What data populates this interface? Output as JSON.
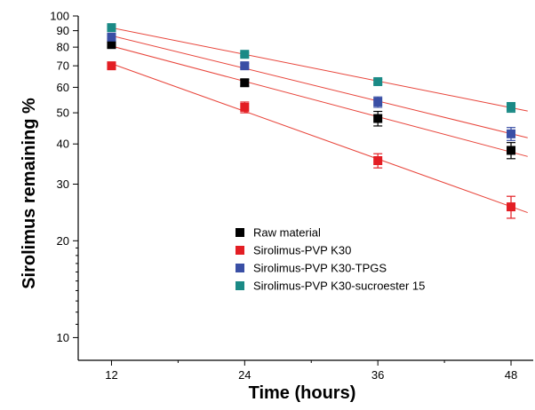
{
  "chart_data": {
    "type": "scatter",
    "xlabel": "Time (hours)",
    "ylabel": "Sirolimus remaining %",
    "x_ticks": [
      12,
      24,
      36,
      48
    ],
    "y_ticks": [
      10,
      20,
      30,
      40,
      50,
      60,
      70,
      80,
      90,
      100
    ],
    "y_scale": "log",
    "xlim": [
      9,
      50
    ],
    "ylim": [
      8.5,
      100
    ],
    "grid": false,
    "legend_position": "lower-center",
    "fit_line_color": "#e8443a",
    "series": [
      {
        "name": "Raw material",
        "color": "#000000",
        "x": [
          12,
          24,
          36,
          48
        ],
        "y": [
          81.5,
          62,
          48,
          38.2
        ],
        "err": [
          1.5,
          1.5,
          2.5,
          2.2
        ]
      },
      {
        "name": "Sirolimus-PVP K30",
        "color": "#e31e24",
        "x": [
          12,
          24,
          36,
          48
        ],
        "y": [
          70,
          52,
          35.5,
          25.5
        ],
        "err": [
          1.2,
          2.0,
          1.8,
          2.0
        ]
      },
      {
        "name": "Sirolimus-PVP K30-TPGS",
        "color": "#3a4fa5",
        "x": [
          12,
          24,
          36,
          48
        ],
        "y": [
          86,
          70,
          54,
          43
        ],
        "err": [
          1.0,
          1.2,
          2.0,
          2.0
        ]
      },
      {
        "name": "Sirolimus-PVP K30-sucroester 15",
        "color": "#1b8a86",
        "x": [
          12,
          24,
          36,
          48
        ],
        "y": [
          92,
          76,
          62.5,
          52
        ],
        "err": [
          0.8,
          0.8,
          1.0,
          1.8
        ]
      }
    ]
  }
}
